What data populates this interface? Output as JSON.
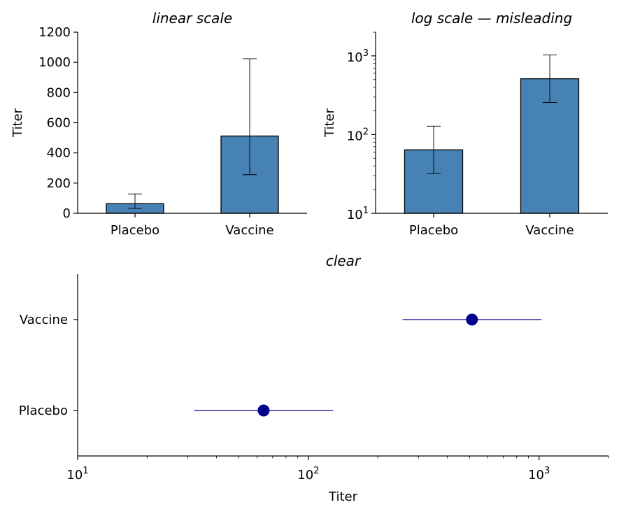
{
  "chart_data": [
    {
      "type": "bar",
      "title": "linear scale",
      "ylabel": "Titer",
      "xlabel": "",
      "yscale": "linear",
      "ylim": [
        0,
        1200
      ],
      "yticks": [
        0,
        200,
        400,
        600,
        800,
        1000,
        1200
      ],
      "categories": [
        "Placebo",
        "Vaccine"
      ],
      "values": [
        64,
        512
      ],
      "error_low": [
        32,
        256
      ],
      "error_high": [
        128,
        1024
      ],
      "bar_color": "#4682b4"
    },
    {
      "type": "bar",
      "title": "log scale — misleading",
      "ylabel": "Titer",
      "xlabel": "",
      "yscale": "log",
      "ylim": [
        10,
        2000
      ],
      "yticks": [
        "10^1",
        "10^2",
        "10^3"
      ],
      "categories": [
        "Placebo",
        "Vaccine"
      ],
      "values": [
        64,
        512
      ],
      "error_low": [
        32,
        256
      ],
      "error_high": [
        128,
        1024
      ],
      "bar_color": "#4682b4"
    },
    {
      "type": "scatter",
      "title": "clear",
      "xlabel": "Titer",
      "ylabel": "",
      "xscale": "log",
      "xlim": [
        10,
        2000
      ],
      "xticks": [
        "10^1",
        "10^2",
        "10^3"
      ],
      "categories": [
        "Placebo",
        "Vaccine"
      ],
      "values": [
        64,
        512
      ],
      "error_low": [
        32,
        256
      ],
      "error_high": [
        128,
        1024
      ],
      "point_color": "#00008b"
    }
  ]
}
